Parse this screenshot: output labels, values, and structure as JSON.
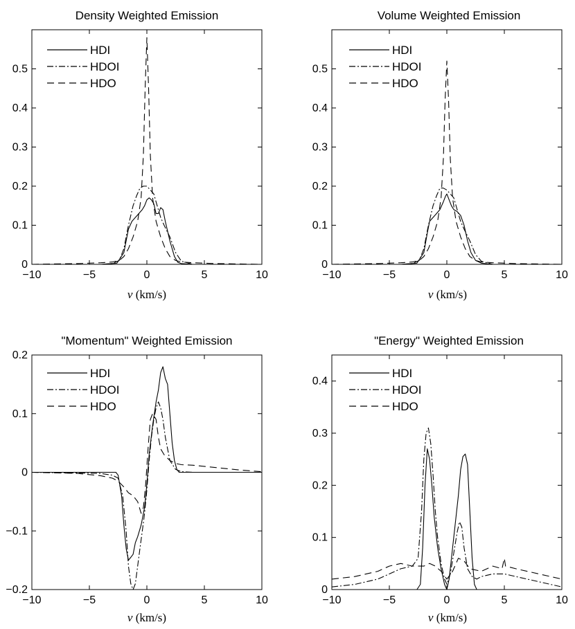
{
  "figure_title": "",
  "chart_data": [
    {
      "type": "line",
      "title": "Density Weighted Emission",
      "xlabel_var": "v",
      "xlabel_unit": "(km/s)",
      "xlim": [
        -10,
        10
      ],
      "ylim": [
        0,
        0.6
      ],
      "xticks": [
        -10,
        -5,
        0,
        5,
        10
      ],
      "yticks": [
        0,
        0.1,
        0.2,
        0.3,
        0.4,
        0.5
      ],
      "xtick_labels": [
        "−10",
        "−5",
        "0",
        "5",
        "10"
      ],
      "ytick_labels": [
        "0",
        "0.1",
        "0.2",
        "0.3",
        "0.4",
        "0.5"
      ],
      "legend": [
        "HDI",
        "HDOI",
        "HDO"
      ],
      "series": [
        {
          "name": "HDI",
          "style": "solid",
          "x": [
            -10,
            -4,
            -2.6,
            -2,
            -1.6,
            -1.3,
            -1,
            -0.7,
            -0.4,
            -0.2,
            0,
            0.2,
            0.4,
            0.6,
            0.8,
            1,
            1.2,
            1.4,
            1.6,
            2,
            2.4,
            2.7,
            3,
            4,
            10
          ],
          "y": [
            0,
            0,
            0.003,
            0.03,
            0.09,
            0.11,
            0.12,
            0.13,
            0.14,
            0.15,
            0.165,
            0.17,
            0.165,
            0.155,
            0.13,
            0.13,
            0.145,
            0.14,
            0.11,
            0.06,
            0.02,
            0.005,
            0.002,
            0,
            0
          ]
        },
        {
          "name": "HDOI",
          "style": "dashdot",
          "x": [
            -10,
            -4,
            -3,
            -2.4,
            -2,
            -1.6,
            -1.2,
            -0.9,
            -0.6,
            -0.3,
            0,
            0.3,
            0.6,
            0.9,
            1.2,
            1.5,
            2,
            2.5,
            3,
            4,
            10
          ],
          "y": [
            0,
            0,
            0.002,
            0.01,
            0.04,
            0.1,
            0.15,
            0.175,
            0.195,
            0.2,
            0.2,
            0.19,
            0.18,
            0.15,
            0.12,
            0.1,
            0.07,
            0.03,
            0.008,
            0,
            0
          ]
        },
        {
          "name": "HDO",
          "style": "dashed",
          "x": [
            -10,
            -6,
            -4,
            -3,
            -2.4,
            -2,
            -1.6,
            -1.2,
            -0.8,
            -0.5,
            -0.3,
            -0.15,
            0,
            0.15,
            0.3,
            0.5,
            0.8,
            1.2,
            1.6,
            2,
            2.5,
            3,
            4,
            6,
            10
          ],
          "y": [
            0,
            0.002,
            0.004,
            0.006,
            0.01,
            0.02,
            0.04,
            0.07,
            0.11,
            0.17,
            0.28,
            0.45,
            0.58,
            0.45,
            0.28,
            0.17,
            0.11,
            0.07,
            0.04,
            0.02,
            0.01,
            0.006,
            0.004,
            0.002,
            0
          ]
        }
      ]
    },
    {
      "type": "line",
      "title": "Volume Weighted Emission",
      "xlabel_var": "v",
      "xlabel_unit": "(km/s)",
      "xlim": [
        -10,
        10
      ],
      "ylim": [
        0,
        0.6
      ],
      "xticks": [
        -10,
        -5,
        0,
        5,
        10
      ],
      "yticks": [
        0,
        0.1,
        0.2,
        0.3,
        0.4,
        0.5
      ],
      "xtick_labels": [
        "−10",
        "−5",
        "0",
        "5",
        "10"
      ],
      "ytick_labels": [
        "0",
        "0.1",
        "0.2",
        "0.3",
        "0.4",
        "0.5"
      ],
      "legend": [
        "HDI",
        "HDOI",
        "HDO"
      ],
      "series": [
        {
          "name": "HDI",
          "style": "solid",
          "x": [
            -10,
            -4,
            -2.6,
            -2,
            -1.7,
            -1.5,
            -1.2,
            -0.9,
            -0.6,
            -0.3,
            -0.1,
            0,
            0.2,
            0.4,
            0.6,
            0.9,
            1.2,
            1.5,
            1.8,
            2.1,
            2.5,
            3,
            4,
            10
          ],
          "y": [
            0,
            0,
            0.003,
            0.03,
            0.08,
            0.11,
            0.12,
            0.13,
            0.14,
            0.16,
            0.175,
            0.18,
            0.165,
            0.15,
            0.14,
            0.135,
            0.125,
            0.1,
            0.06,
            0.03,
            0.01,
            0.003,
            0,
            0
          ]
        },
        {
          "name": "HDOI",
          "style": "dashdot",
          "x": [
            -10,
            -4,
            -3,
            -2.4,
            -2,
            -1.6,
            -1.2,
            -0.9,
            -0.6,
            -0.3,
            0,
            0.3,
            0.6,
            0.9,
            1.2,
            1.5,
            2,
            2.5,
            3,
            4,
            10
          ],
          "y": [
            0,
            0,
            0.002,
            0.01,
            0.04,
            0.1,
            0.15,
            0.175,
            0.195,
            0.195,
            0.19,
            0.18,
            0.17,
            0.14,
            0.11,
            0.09,
            0.06,
            0.025,
            0.008,
            0,
            0
          ]
        },
        {
          "name": "HDO",
          "style": "dashed",
          "x": [
            -10,
            -6,
            -4,
            -3,
            -2.4,
            -2,
            -1.6,
            -1.2,
            -0.8,
            -0.5,
            -0.3,
            -0.15,
            0,
            0.15,
            0.3,
            0.5,
            0.8,
            1.2,
            1.6,
            2,
            2.5,
            3,
            4,
            6,
            10
          ],
          "y": [
            0,
            0.002,
            0.004,
            0.006,
            0.01,
            0.02,
            0.04,
            0.07,
            0.11,
            0.17,
            0.27,
            0.42,
            0.52,
            0.42,
            0.27,
            0.17,
            0.11,
            0.07,
            0.04,
            0.02,
            0.01,
            0.006,
            0.004,
            0.002,
            0
          ]
        }
      ]
    },
    {
      "type": "line",
      "title": "\"Momentum\" Weighted Emission",
      "xlabel_var": "v",
      "xlabel_unit": "(km/s)",
      "xlim": [
        -10,
        10
      ],
      "ylim": [
        -0.2,
        0.2
      ],
      "xticks": [
        -10,
        -5,
        0,
        5,
        10
      ],
      "yticks": [
        -0.2,
        -0.1,
        0,
        0.1,
        0.2
      ],
      "xtick_labels": [
        "−10",
        "−5",
        "0",
        "5",
        "10"
      ],
      "ytick_labels": [
        "−0.2",
        "−0.1",
        "0",
        "0.1",
        "0.2"
      ],
      "legend": [
        "HDI",
        "HDOI",
        "HDO"
      ],
      "series": [
        {
          "name": "HDI",
          "style": "solid",
          "x": [
            -10,
            -3,
            -2.7,
            -2.5,
            -2.2,
            -2,
            -1.8,
            -1.6,
            -1.4,
            -1.2,
            -1,
            -0.8,
            -0.5,
            -0.2,
            0,
            0.2,
            0.5,
            0.8,
            1,
            1.2,
            1.4,
            1.6,
            1.8,
            2,
            2.2,
            2.4,
            2.6,
            2.8,
            10
          ],
          "y": [
            0,
            0,
            0,
            -0.005,
            -0.04,
            -0.09,
            -0.13,
            -0.15,
            -0.145,
            -0.14,
            -0.12,
            -0.11,
            -0.09,
            -0.06,
            -0.02,
            0.03,
            0.08,
            0.12,
            0.14,
            0.17,
            0.18,
            0.16,
            0.15,
            0.1,
            0.05,
            0.02,
            0.005,
            0,
            0
          ]
        },
        {
          "name": "HDOI",
          "style": "dashdot",
          "x": [
            -10,
            -4,
            -3,
            -2.5,
            -2.1,
            -1.8,
            -1.6,
            -1.4,
            -1.2,
            -1,
            -0.8,
            -0.6,
            -0.4,
            -0.2,
            0,
            0.2,
            0.4,
            0.6,
            0.8,
            1,
            1.2,
            1.4,
            1.6,
            1.8,
            2,
            2.5,
            3,
            4,
            10
          ],
          "y": [
            0,
            -0.002,
            -0.005,
            -0.01,
            -0.04,
            -0.1,
            -0.16,
            -0.19,
            -0.2,
            -0.19,
            -0.16,
            -0.13,
            -0.1,
            -0.07,
            -0.03,
            0.02,
            0.06,
            0.09,
            0.11,
            0.12,
            0.11,
            0.09,
            0.06,
            0.04,
            0.02,
            0.005,
            0.001,
            0,
            0
          ]
        },
        {
          "name": "HDO",
          "style": "dashed",
          "x": [
            -10,
            -6,
            -4,
            -3,
            -2.5,
            -2,
            -1.6,
            -1.2,
            -0.8,
            -0.5,
            -0.3,
            -0.1,
            0,
            0.1,
            0.3,
            0.5,
            0.8,
            1,
            1.2,
            1.5,
            2,
            2.5,
            3,
            4,
            6,
            8,
            10
          ],
          "y": [
            0,
            -0.002,
            -0.006,
            -0.01,
            -0.015,
            -0.025,
            -0.035,
            -0.04,
            -0.05,
            -0.07,
            -0.06,
            -0.02,
            0.01,
            0.04,
            0.09,
            0.1,
            0.09,
            0.06,
            0.04,
            0.03,
            0.02,
            0.015,
            0.013,
            0.012,
            0.008,
            0.004,
            0.001
          ]
        }
      ]
    },
    {
      "type": "line",
      "title": "\"Energy\" Weighted Emission",
      "xlabel_var": "v",
      "xlabel_unit": "(km/s)",
      "xlim": [
        -10,
        10
      ],
      "ylim": [
        0,
        0.45
      ],
      "xticks": [
        -10,
        -5,
        0,
        5,
        10
      ],
      "yticks": [
        0,
        0.1,
        0.2,
        0.3,
        0.4
      ],
      "xtick_labels": [
        "−10",
        "−5",
        "0",
        "5",
        "10"
      ],
      "ytick_labels": [
        "0",
        "0.1",
        "0.2",
        "0.3",
        "0.4"
      ],
      "legend": [
        "HDI",
        "HDOI",
        "HDO"
      ],
      "series": [
        {
          "name": "HDI",
          "style": "solid",
          "x": [
            -10,
            -3,
            -2.6,
            -2.3,
            -2.1,
            -1.9,
            -1.7,
            -1.5,
            -1.3,
            -1.1,
            -0.8,
            -0.5,
            -0.2,
            0,
            0.2,
            0.5,
            0.8,
            1,
            1.2,
            1.4,
            1.6,
            1.8,
            2,
            2.2,
            2.4,
            2.6,
            10
          ],
          "y": [
            0,
            0,
            0,
            0.01,
            0.08,
            0.2,
            0.27,
            0.25,
            0.2,
            0.14,
            0.08,
            0.04,
            0.01,
            0,
            0.02,
            0.08,
            0.14,
            0.18,
            0.23,
            0.255,
            0.26,
            0.24,
            0.15,
            0.06,
            0.01,
            0,
            0
          ]
        },
        {
          "name": "HDOI",
          "style": "dashdot",
          "x": [
            -10,
            -8,
            -6,
            -5,
            -4,
            -3,
            -2.5,
            -2.2,
            -2,
            -1.8,
            -1.6,
            -1.4,
            -1.2,
            -1,
            -0.8,
            -0.5,
            -0.2,
            0,
            0.3,
            0.6,
            0.9,
            1.1,
            1.3,
            1.5,
            1.8,
            2.2,
            2.6,
            3,
            4,
            5,
            6,
            8,
            10
          ],
          "y": [
            0.005,
            0.01,
            0.02,
            0.03,
            0.04,
            0.045,
            0.06,
            0.15,
            0.25,
            0.3,
            0.31,
            0.28,
            0.22,
            0.15,
            0.1,
            0.05,
            0.02,
            0.01,
            0.03,
            0.07,
            0.11,
            0.13,
            0.12,
            0.08,
            0.04,
            0.025,
            0.02,
            0.025,
            0.03,
            0.03,
            0.025,
            0.015,
            0.005
          ]
        },
        {
          "name": "HDO",
          "style": "dashed",
          "x": [
            -10,
            -8,
            -6,
            -5,
            -4,
            -3,
            -2,
            -1.5,
            -1,
            -0.5,
            0,
            0.5,
            1,
            1.5,
            2,
            3,
            4,
            4.8,
            5,
            5.1,
            6,
            8,
            10
          ],
          "y": [
            0.02,
            0.025,
            0.035,
            0.045,
            0.05,
            0.045,
            0.045,
            0.05,
            0.045,
            0.035,
            0.02,
            0.035,
            0.06,
            0.055,
            0.04,
            0.035,
            0.045,
            0.04,
            0.06,
            0.045,
            0.04,
            0.03,
            0.02
          ]
        }
      ]
    }
  ]
}
